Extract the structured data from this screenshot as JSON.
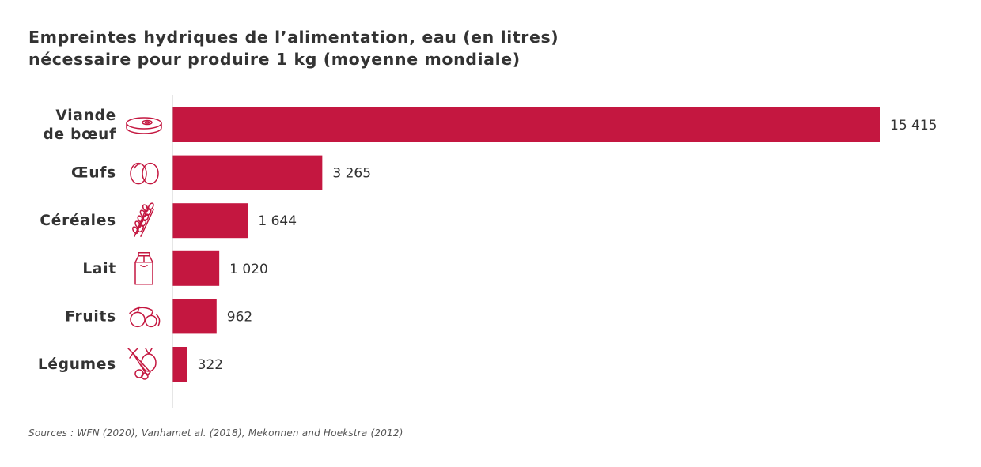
{
  "title_lines": [
    "Empreintes hydriques de l’alimentation, eau (en litres)",
    "nécessaire pour produire 1 kg (moyenne mondiale)"
  ],
  "source": "Sources : WFN (2020), Vanhamet al. (2018), Mekonnen and Hoekstra (2012)",
  "colors": {
    "bar": "#c41740",
    "icon": "#c41740",
    "text": "#333333",
    "axis": "#cccccc"
  },
  "chart_data": {
    "type": "bar",
    "orientation": "horizontal",
    "title": "Empreintes hydriques de l’alimentation, eau (en litres) nécessaire pour produire 1 kg (moyenne mondiale)",
    "categories": [
      [
        "Viande",
        "de bœuf"
      ],
      [
        "Œufs"
      ],
      [
        "Céréales"
      ],
      [
        "Lait"
      ],
      [
        "Fruits"
      ],
      [
        "Légumes"
      ]
    ],
    "icons": [
      "steak-icon",
      "eggs-icon",
      "wheat-icon",
      "milk-carton-icon",
      "fruits-icon",
      "vegetables-icon"
    ],
    "values": [
      15415,
      3265,
      1644,
      1020,
      962,
      322
    ],
    "value_labels": [
      "15 415",
      "3 265",
      "1 644",
      "1 020",
      "962",
      "322"
    ],
    "xlim": [
      0,
      15415
    ],
    "grid": false,
    "legend": "none"
  }
}
